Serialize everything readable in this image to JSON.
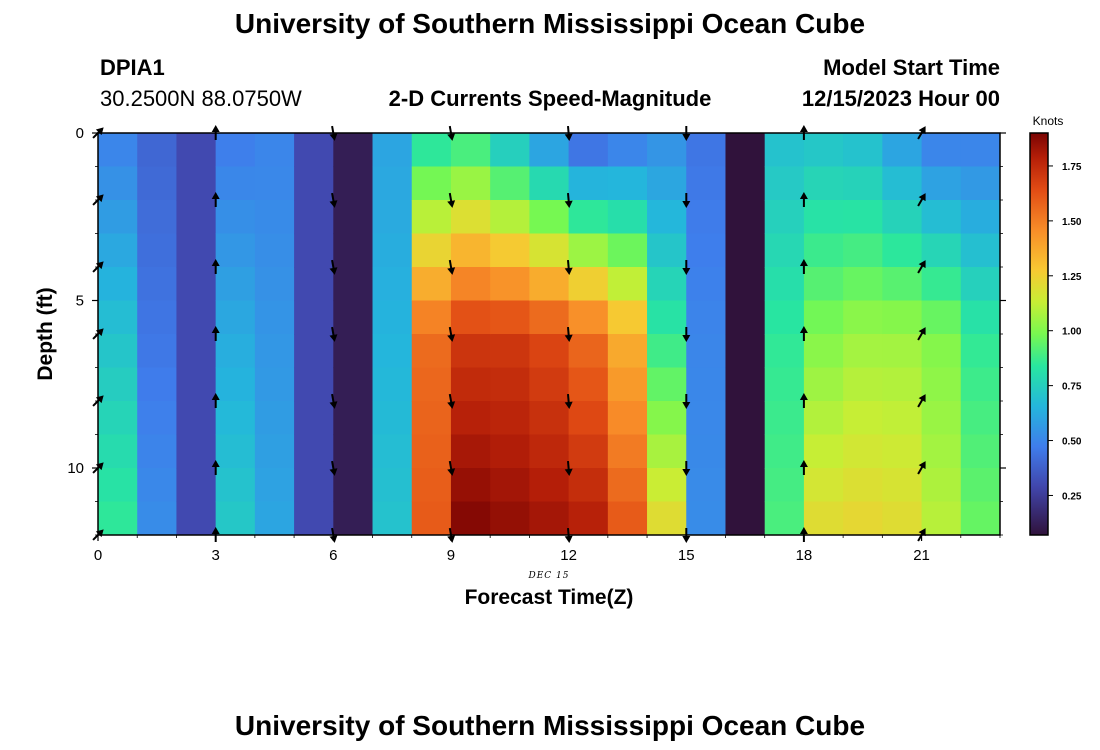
{
  "header": {
    "title": "University of Southern Mississippi Ocean Cube",
    "station": "DPIA1",
    "coords": "30.2500N  88.0750W",
    "subtitle": "2-D Currents Speed-Magnitude",
    "model_label": "Model Start Time",
    "model_time": "12/15/2023 Hour 00"
  },
  "footer": {
    "title": "University of Southern Mississippi Ocean Cube"
  },
  "chart_data": {
    "type": "heatmap",
    "title": "2-D Currents Speed-Magnitude",
    "xlabel": "Forecast Time(Z)",
    "ylabel": "Depth (ft)",
    "xlim": [
      0,
      23
    ],
    "ylim": [
      0,
      12
    ],
    "x_ticks": [
      0,
      3,
      6,
      9,
      12,
      15,
      18,
      21
    ],
    "y_ticks": [
      0,
      5,
      10
    ],
    "date_label": "DEC 15",
    "colorbar": {
      "label": "Knots",
      "range": [
        0.07,
        1.9
      ],
      "ticks": [
        "0.25",
        "0.50",
        "0.75",
        "1.00",
        "1.25",
        "1.50",
        "1.75"
      ],
      "tick_values": [
        0.25,
        0.5,
        0.75,
        1.0,
        1.25,
        1.5,
        1.75
      ]
    },
    "hours": [
      0,
      1,
      2,
      3,
      4,
      5,
      6,
      7,
      8,
      9,
      10,
      11,
      12,
      13,
      14,
      15,
      16,
      17,
      18,
      19,
      20,
      21,
      22
    ],
    "speed_profiles": {
      "0": {
        "top": 0.5,
        "mid": 0.7,
        "bottom": 0.85
      },
      "1": {
        "top": 0.4,
        "mid": 0.45,
        "bottom": 0.52
      },
      "2": {
        "top": 0.3,
        "mid": 0.3,
        "bottom": 0.3
      },
      "3": {
        "top": 0.48,
        "mid": 0.62,
        "bottom": 0.72
      },
      "4": {
        "top": 0.5,
        "mid": 0.55,
        "bottom": 0.6
      },
      "5": {
        "top": 0.3,
        "mid": 0.3,
        "bottom": 0.3
      },
      "6": {
        "top": 0.12,
        "mid": 0.12,
        "bottom": 0.12
      },
      "7": {
        "top": 0.6,
        "mid": 0.65,
        "bottom": 0.7
      },
      "8": {
        "top": 0.85,
        "mid": 1.55,
        "bottom": 1.6
      },
      "9": {
        "top": 0.9,
        "mid": 1.7,
        "bottom": 1.88
      },
      "10": {
        "top": 0.75,
        "mid": 1.7,
        "bottom": 1.85
      },
      "11": {
        "top": 0.6,
        "mid": 1.65,
        "bottom": 1.82
      },
      "12": {
        "top": 0.45,
        "mid": 1.55,
        "bottom": 1.78
      },
      "13": {
        "top": 0.5,
        "mid": 1.35,
        "bottom": 1.6
      },
      "14": {
        "top": 0.55,
        "mid": 0.85,
        "bottom": 1.2
      },
      "15": {
        "top": 0.45,
        "mid": 0.5,
        "bottom": 0.52
      },
      "16": {
        "top": 0.07,
        "mid": 0.07,
        "bottom": 0.07
      },
      "17": {
        "top": 0.7,
        "mid": 0.85,
        "bottom": 0.9
      },
      "18": {
        "top": 0.72,
        "mid": 1.0,
        "bottom": 1.2
      },
      "19": {
        "top": 0.7,
        "mid": 1.05,
        "bottom": 1.22
      },
      "20": {
        "top": 0.6,
        "mid": 1.05,
        "bottom": 1.2
      },
      "21": {
        "top": 0.5,
        "mid": 1.0,
        "bottom": 1.1
      },
      "22": {
        "top": 0.5,
        "mid": 0.85,
        "bottom": 0.95
      }
    },
    "vector_hours": [
      0,
      3,
      6,
      9,
      12,
      15,
      18,
      21
    ],
    "vector_depths": [
      0,
      2,
      4,
      6,
      8,
      10,
      12
    ],
    "vector_directions_deg": {
      "0": 45,
      "3": 0,
      "6": 170,
      "9": 170,
      "12": 175,
      "15": 180,
      "18": 0,
      "21": 30
    },
    "vector_note": "direction in degrees clockwise from north (up)"
  }
}
